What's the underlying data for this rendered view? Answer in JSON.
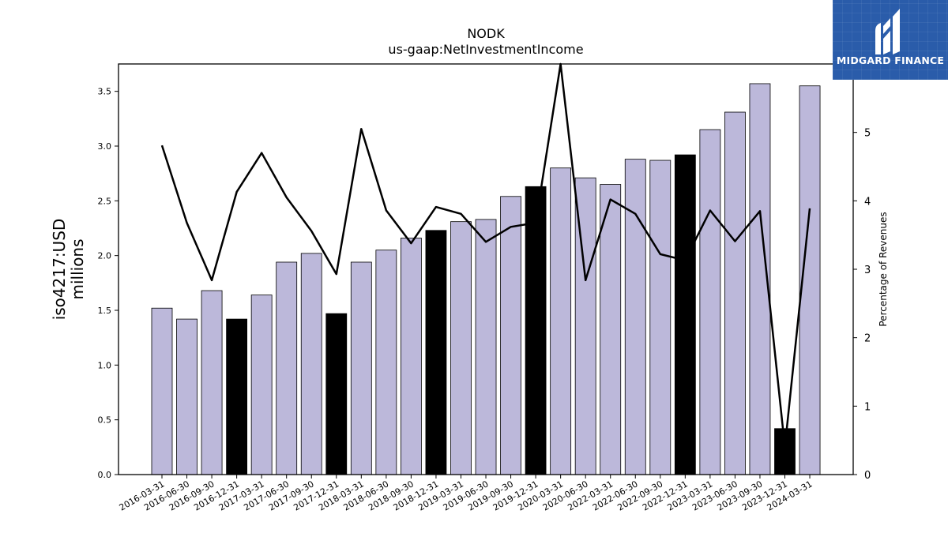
{
  "brand": {
    "name": "MIDGARD FINANCE",
    "logo_icon": "midgard-m-logo-icon",
    "background": "#2a5caa"
  },
  "chart_data": {
    "type": "bar",
    "title": "NODK",
    "subtitle": "us-gaap:NetInvestmentIncome",
    "ylabel": "iso4217:USD\nmillions",
    "ylabel_right": "Percentage of Revenues",
    "ylim": [
      0,
      3.75
    ],
    "yticks": [
      0.0,
      0.5,
      1.0,
      1.5,
      2.0,
      2.5,
      3.0,
      3.5
    ],
    "ytick_labels": [
      "0.0",
      "0.5",
      "1.0",
      "1.5",
      "2.0",
      "2.5",
      "3.0",
      "3.5"
    ],
    "ylim_right": [
      0,
      6.0
    ],
    "yticks_right": [
      0,
      1,
      2,
      3,
      4,
      5
    ],
    "ytick_labels_right": [
      "0",
      "1",
      "2",
      "3",
      "4",
      "5"
    ],
    "colors": {
      "quarter_bar": "#bcb8da",
      "year_end_bar": "#000000",
      "line": "#000000"
    },
    "categories": [
      "2016-03-31",
      "2016-06-30",
      "2016-09-30",
      "2016-12-31",
      "2017-03-31",
      "2017-06-30",
      "2017-09-30",
      "2017-12-31",
      "2018-03-31",
      "2018-06-30",
      "2018-09-30",
      "2018-12-31",
      "2019-03-31",
      "2019-06-30",
      "2019-09-30",
      "2019-12-31",
      "2020-03-31",
      "2020-06-30",
      "2022-03-31",
      "2022-06-30",
      "2022-09-30",
      "2022-12-31",
      "2023-03-31",
      "2023-06-30",
      "2023-09-30",
      "2023-12-31",
      "2024-03-31"
    ],
    "series": [
      {
        "kind": "bar",
        "axis": "left",
        "values": [
          1.52,
          1.42,
          1.68,
          1.42,
          1.64,
          1.94,
          2.02,
          1.47,
          1.94,
          2.05,
          2.16,
          2.23,
          2.31,
          2.33,
          2.54,
          2.63,
          2.8,
          2.71,
          2.65,
          2.88,
          2.87,
          2.92,
          3.15,
          3.31,
          3.57,
          0.42,
          3.55
        ],
        "highlight": [
          false,
          false,
          false,
          true,
          false,
          false,
          false,
          true,
          false,
          false,
          false,
          true,
          false,
          false,
          false,
          true,
          false,
          false,
          false,
          false,
          false,
          true,
          false,
          false,
          false,
          true,
          false
        ]
      },
      {
        "kind": "line",
        "axis": "right",
        "values": [
          4.81,
          3.68,
          2.84,
          4.13,
          4.7,
          4.05,
          3.56,
          2.93,
          5.05,
          3.86,
          3.38,
          3.91,
          3.81,
          3.4,
          3.62,
          3.68,
          6.0,
          2.84,
          4.02,
          3.81,
          3.22,
          3.13,
          3.86,
          3.41,
          3.85,
          0.4,
          3.89
        ]
      }
    ],
    "grid": false,
    "legend": "none"
  }
}
